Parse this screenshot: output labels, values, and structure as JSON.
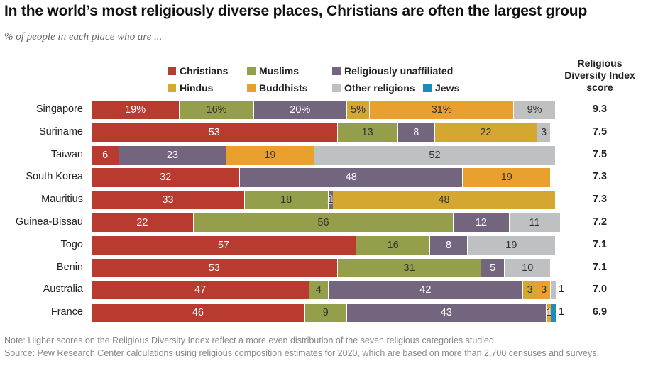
{
  "title": "In the world’s most religiously diverse places, Christians are often the largest group",
  "subtitle": "% of people in each place who are ...",
  "colors": {
    "Christians": "#b93a2e",
    "Muslims": "#959e4a",
    "Religiously unaffiliated": "#74657f",
    "Hindus": "#d4a830",
    "Buddhists": "#e9a02e",
    "Other religions": "#bec0c2",
    "Jews": "#1d8cbd"
  },
  "legend": [
    "Christians",
    "Muslims",
    "Religiously unaffiliated",
    "Hindus",
    "Buddhists",
    "Other religions",
    "Jews"
  ],
  "score_header": "Religious Diversity Index score",
  "chart_data": {
    "type": "bar",
    "orientation": "horizontal",
    "stacked": true,
    "title": "In the world’s most religiously diverse places, Christians are often the largest group",
    "subtitle": "% of people in each place who are ...",
    "xlim": [
      0,
      100
    ],
    "legend_position": "top",
    "categories": [
      "Singapore",
      "Suriname",
      "Taiwan",
      "South Korea",
      "Mauritius",
      "Guinea-Bissau",
      "Togo",
      "Benin",
      "Australia",
      "France"
    ],
    "rows": [
      {
        "place": "Singapore",
        "score": "9.3",
        "segments": [
          {
            "group": "Christians",
            "value": 19,
            "label": "19%"
          },
          {
            "group": "Muslims",
            "value": 16,
            "label": "16%"
          },
          {
            "group": "Religiously unaffiliated",
            "value": 20,
            "label": "20%"
          },
          {
            "group": "Hindus",
            "value": 5,
            "label": "5%"
          },
          {
            "group": "Buddhists",
            "value": 31,
            "label": "31%"
          },
          {
            "group": "Other religions",
            "value": 9,
            "label": "9%"
          }
        ]
      },
      {
        "place": "Suriname",
        "score": "7.5",
        "segments": [
          {
            "group": "Christians",
            "value": 53,
            "label": "53"
          },
          {
            "group": "Muslims",
            "value": 13,
            "label": "13"
          },
          {
            "group": "Religiously unaffiliated",
            "value": 8,
            "label": "8"
          },
          {
            "group": "Hindus",
            "value": 22,
            "label": "22"
          },
          {
            "group": "Other religions",
            "value": 3,
            "label": "3"
          }
        ]
      },
      {
        "place": "Taiwan",
        "score": "7.5",
        "segments": [
          {
            "group": "Christians",
            "value": 6,
            "label": "6"
          },
          {
            "group": "Religiously unaffiliated",
            "value": 23,
            "label": "23"
          },
          {
            "group": "Buddhists",
            "value": 19,
            "label": "19"
          },
          {
            "group": "Other religions",
            "value": 52,
            "label": "52"
          }
        ]
      },
      {
        "place": "South Korea",
        "score": "7.3",
        "segments": [
          {
            "group": "Christians",
            "value": 32,
            "label": "32"
          },
          {
            "group": "Religiously unaffiliated",
            "value": 48,
            "label": "48"
          },
          {
            "group": "Buddhists",
            "value": 19,
            "label": "19"
          }
        ]
      },
      {
        "place": "Mauritius",
        "score": "7.3",
        "segments": [
          {
            "group": "Christians",
            "value": 33,
            "label": "33"
          },
          {
            "group": "Muslims",
            "value": 18,
            "label": "18"
          },
          {
            "group": "Religiously unaffiliated",
            "value": 1,
            "label": "1"
          },
          {
            "group": "Hindus",
            "value": 48,
            "label": "48"
          }
        ]
      },
      {
        "place": "Guinea-Bissau",
        "score": "7.2",
        "segments": [
          {
            "group": "Christians",
            "value": 22,
            "label": "22"
          },
          {
            "group": "Muslims",
            "value": 56,
            "label": "56"
          },
          {
            "group": "Religiously unaffiliated",
            "value": 12,
            "label": "12"
          },
          {
            "group": "Other religions",
            "value": 11,
            "label": "11"
          }
        ]
      },
      {
        "place": "Togo",
        "score": "7.1",
        "segments": [
          {
            "group": "Christians",
            "value": 57,
            "label": "57"
          },
          {
            "group": "Muslims",
            "value": 16,
            "label": "16"
          },
          {
            "group": "Religiously unaffiliated",
            "value": 8,
            "label": "8"
          },
          {
            "group": "Other religions",
            "value": 19,
            "label": "19"
          }
        ]
      },
      {
        "place": "Benin",
        "score": "7.1",
        "segments": [
          {
            "group": "Christians",
            "value": 53,
            "label": "53"
          },
          {
            "group": "Muslims",
            "value": 31,
            "label": "31"
          },
          {
            "group": "Religiously unaffiliated",
            "value": 5,
            "label": "5"
          },
          {
            "group": "Other religions",
            "value": 10,
            "label": "10"
          }
        ]
      },
      {
        "place": "Australia",
        "score": "7.0",
        "segments": [
          {
            "group": "Christians",
            "value": 47,
            "label": "47"
          },
          {
            "group": "Muslims",
            "value": 4,
            "label": "4"
          },
          {
            "group": "Religiously unaffiliated",
            "value": 42,
            "label": "42"
          },
          {
            "group": "Hindus",
            "value": 3,
            "label": "3"
          },
          {
            "group": "Buddhists",
            "value": 3,
            "label": "3"
          },
          {
            "group": "Other religions",
            "value": 1,
            "label": "1",
            "label_position": "outside"
          }
        ]
      },
      {
        "place": "France",
        "score": "6.9",
        "segments": [
          {
            "group": "Christians",
            "value": 46,
            "label": "46"
          },
          {
            "group": "Muslims",
            "value": 9,
            "label": "9"
          },
          {
            "group": "Religiously unaffiliated",
            "value": 43,
            "label": "43"
          },
          {
            "group": "Buddhists",
            "value": 1,
            "label": "1"
          },
          {
            "group": "Jews",
            "value": 1,
            "label": "1",
            "label_position": "outside"
          }
        ]
      }
    ]
  },
  "notes": {
    "note": "Note: Higher scores on the Religious Diversity Index reflect a more even distribution of the seven religious categories studied.",
    "source": "Source: Pew Research Center calculations using religious composition estimates for 2020, which are based on more than 2,700 censuses and surveys."
  }
}
